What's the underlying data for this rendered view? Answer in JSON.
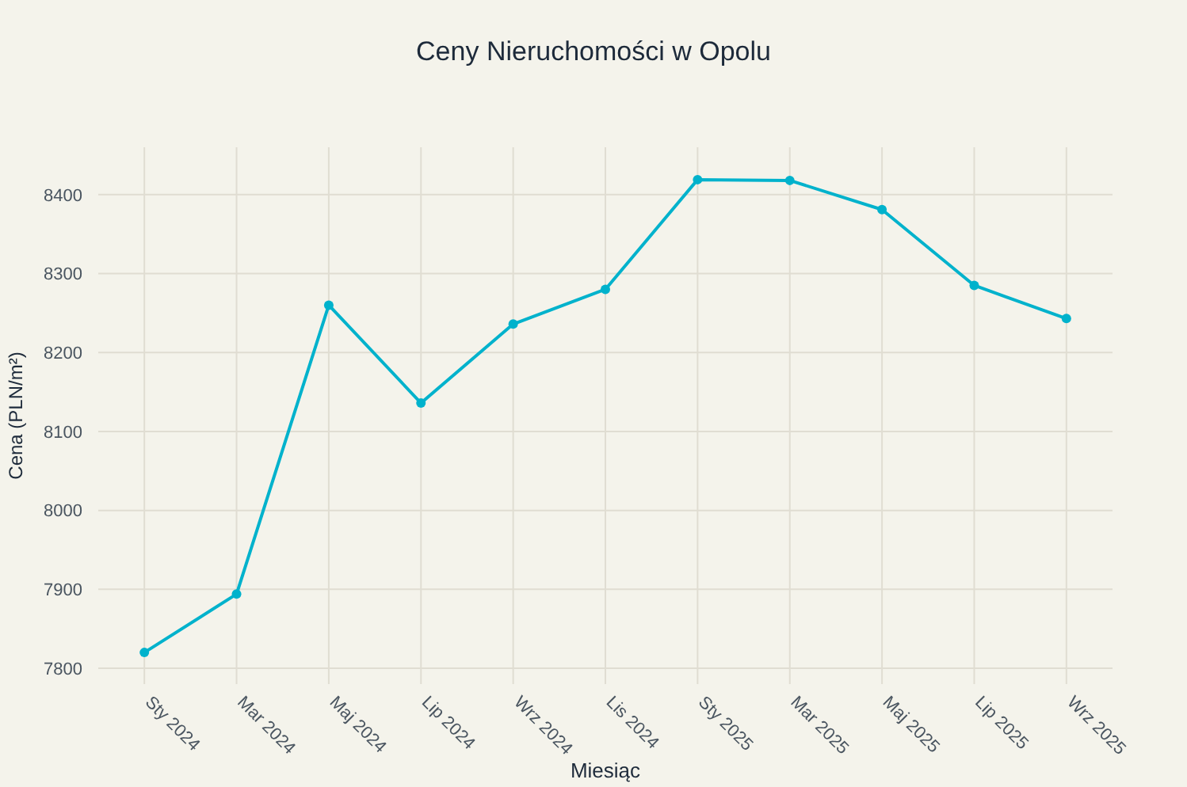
{
  "chart_data": {
    "type": "line",
    "title": "Ceny Nieruchomości w Opolu",
    "xlabel": "Miesiąc",
    "ylabel": "Cena (PLN/m²)",
    "categories": [
      "Sty 2024",
      "Mar 2024",
      "Maj 2024",
      "Lip 2024",
      "Wrz 2024",
      "Lis 2024",
      "Sty 2025",
      "Mar 2025",
      "Maj 2025",
      "Lip 2025",
      "Wrz 2025"
    ],
    "series": [
      {
        "color": "#00b2cc",
        "values": [
          7820,
          7894,
          8260,
          8136,
          8236,
          8280,
          8419,
          8418,
          8381,
          8285,
          8243
        ]
      }
    ],
    "ylim": [
      7780,
      8460
    ],
    "yticks": [
      7800,
      7900,
      8000,
      8100,
      8200,
      8300,
      8400
    ],
    "grid": true,
    "marker": "circle",
    "line_style": "solid"
  }
}
